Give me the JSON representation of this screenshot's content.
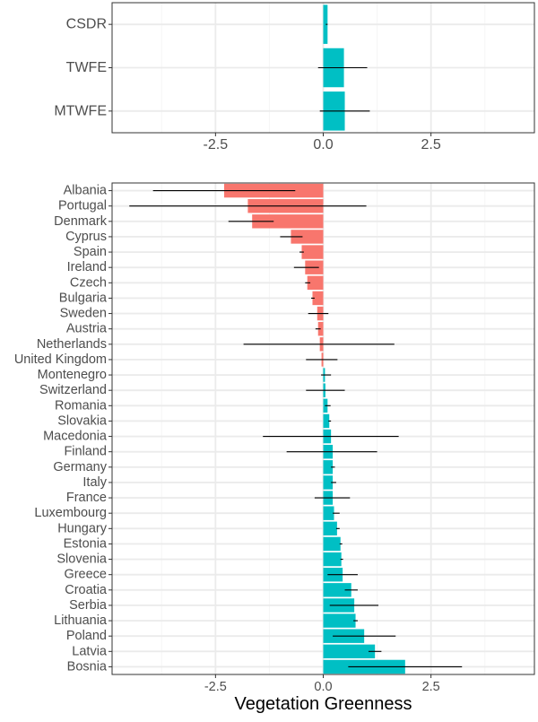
{
  "colors": {
    "negative": "#F8766D",
    "positive": "#00BFC4",
    "panel_border": "#333333",
    "grid_major": "#EBEBEB",
    "grid_minor": "#F5F5F5",
    "tick_text": "#4D4D4D",
    "error_bar": "#000000"
  },
  "chart_data": [
    {
      "type": "bar",
      "orientation": "horizontal",
      "title": "",
      "xlabel": "",
      "ylabel": "",
      "xlim": [
        -4.9,
        4.9
      ],
      "x_ticks": [
        -2.5,
        0,
        2.5
      ],
      "x_tick_labels": [
        "-2.5",
        "0.0",
        "2.5"
      ],
      "grid": true,
      "categories": [
        "CSDR",
        "TWFE",
        "MTWFE"
      ],
      "values": [
        0.1,
        0.48,
        0.5
      ],
      "error_low": [
        0.06,
        -0.12,
        -0.08
      ],
      "error_high": [
        0.1,
        1.02,
        1.08
      ]
    },
    {
      "type": "bar",
      "orientation": "horizontal",
      "title": "",
      "xlabel": "Vegetation Greenness",
      "ylabel": "",
      "xlim": [
        -4.9,
        4.9
      ],
      "x_ticks": [
        -2.5,
        0,
        2.5
      ],
      "x_tick_labels": [
        "-2.5",
        "0.0",
        "2.5"
      ],
      "grid": true,
      "categories": [
        "Albania",
        "Portugal",
        "Denmark",
        "Cyprus",
        "Spain",
        "Ireland",
        "Czech",
        "Bulgaria",
        "Sweden",
        "Austria",
        "Netherlands",
        "United Kingdom",
        "Montenegro",
        "Switzerland",
        "Romania",
        "Slovakia",
        "Macedonia",
        "Finland",
        "Germany",
        "Italy",
        "France",
        "Luxembourg",
        "Hungary",
        "Estonia",
        "Slovenia",
        "Greece",
        "Croatia",
        "Serbia",
        "Lithuania",
        "Poland",
        "Latvia",
        "Bosnia"
      ],
      "values": [
        -2.3,
        -1.75,
        -1.65,
        -0.75,
        -0.5,
        -0.42,
        -0.37,
        -0.25,
        -0.14,
        -0.12,
        -0.08,
        -0.04,
        0.04,
        0.05,
        0.1,
        0.14,
        0.18,
        0.22,
        0.22,
        0.22,
        0.22,
        0.25,
        0.32,
        0.4,
        0.42,
        0.45,
        0.65,
        0.72,
        0.75,
        0.95,
        1.2,
        1.9
      ],
      "error_low": [
        -3.95,
        -4.5,
        -2.2,
        -1.0,
        -0.55,
        -0.68,
        -0.42,
        -0.28,
        -0.35,
        -0.18,
        -1.85,
        -0.4,
        -0.05,
        -0.4,
        0.04,
        0.12,
        -1.4,
        -0.85,
        0.18,
        0.18,
        -0.2,
        0.22,
        0.3,
        0.38,
        0.4,
        0.1,
        0.5,
        0.15,
        0.7,
        0.22,
        1.05,
        0.58
      ],
      "error_high": [
        -0.65,
        1.0,
        -1.15,
        -0.48,
        -0.45,
        -0.1,
        -0.3,
        -0.2,
        0.12,
        -0.06,
        1.65,
        0.33,
        0.18,
        0.5,
        0.17,
        0.18,
        1.75,
        1.25,
        0.27,
        0.3,
        0.62,
        0.38,
        0.38,
        0.44,
        0.46,
        0.8,
        0.8,
        1.28,
        0.8,
        1.68,
        1.35,
        3.22
      ]
    }
  ]
}
